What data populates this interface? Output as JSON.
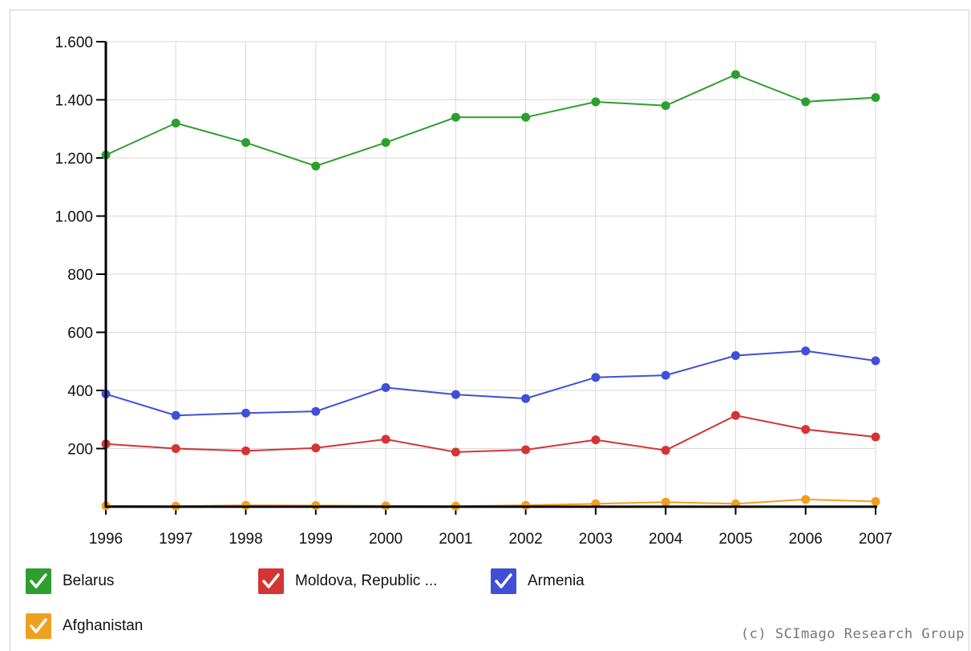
{
  "chart_data": {
    "type": "line",
    "x": [
      "1996",
      "1997",
      "1998",
      "1999",
      "2000",
      "2001",
      "2002",
      "2003",
      "2004",
      "2005",
      "2006",
      "2007"
    ],
    "ylim": [
      0,
      1600
    ],
    "yticks": [
      200,
      400,
      600,
      800,
      1000,
      1200,
      1400,
      1600
    ],
    "ytick_labels": [
      "200",
      "400",
      "600",
      "800",
      "1.000",
      "1.200",
      "1.400",
      "1.600"
    ],
    "grid": true,
    "legend_position": "bottom",
    "series": [
      {
        "name": "Belarus",
        "color": "#2e9e2e",
        "values": [
          1210,
          1320,
          1253,
          1172,
          1253,
          1340,
          1340,
          1393,
          1380,
          1487,
          1393,
          1408
        ]
      },
      {
        "name": "Moldova, Republic ...",
        "color": "#d43434",
        "values": [
          216,
          200,
          192,
          202,
          232,
          188,
          196,
          230,
          194,
          314,
          266,
          240
        ]
      },
      {
        "name": "Armenia",
        "color": "#3f4fd6",
        "values": [
          388,
          314,
          322,
          328,
          410,
          386,
          372,
          445,
          452,
          520,
          536,
          502
        ]
      },
      {
        "name": "Afghanistan",
        "color": "#f0a020",
        "values": [
          3,
          2,
          5,
          4,
          3,
          2,
          5,
          10,
          16,
          10,
          25,
          18
        ]
      }
    ]
  },
  "credit": "(c) SCImago Research Group"
}
